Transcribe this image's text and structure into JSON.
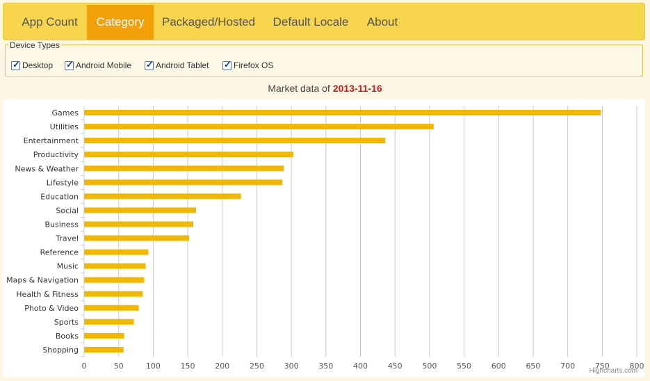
{
  "nav": {
    "tabs": [
      {
        "label": "App Count",
        "active": false
      },
      {
        "label": "Category",
        "active": true
      },
      {
        "label": "Packaged/Hosted",
        "active": false
      },
      {
        "label": "Default Locale",
        "active": false
      },
      {
        "label": "About",
        "active": false
      }
    ]
  },
  "device_types": {
    "legend": "Device Types",
    "options": [
      {
        "label": "Desktop",
        "checked": true
      },
      {
        "label": "Android Mobile",
        "checked": true
      },
      {
        "label": "Android Tablet",
        "checked": true
      },
      {
        "label": "Firefox OS",
        "checked": true
      }
    ]
  },
  "market": {
    "prefix": "Market data of",
    "date": "2013-11-16"
  },
  "credit": "Highcharts.com",
  "colors": {
    "accent": "#f2a007",
    "bar": "#f2b800",
    "date": "#c0201d",
    "navbar": "#f7d54c"
  },
  "chart_data": {
    "type": "bar",
    "orientation": "horizontal",
    "categories": [
      "Games",
      "Utilities",
      "Entertainment",
      "Productivity",
      "News & Weather",
      "Lifestyle",
      "Education",
      "Social",
      "Business",
      "Travel",
      "Reference",
      "Music",
      "Maps & Navigation",
      "Health & Fitness",
      "Photo & Video",
      "Sports",
      "Books",
      "Shopping"
    ],
    "values": [
      748,
      506,
      436,
      303,
      289,
      287,
      227,
      162,
      158,
      152,
      93,
      89,
      87,
      85,
      79,
      72,
      58,
      57
    ],
    "xlim": [
      0,
      800
    ],
    "ticks": [
      "0",
      "50",
      "100",
      "150",
      "200",
      "250",
      "300",
      "350",
      "400",
      "450",
      "500",
      "550",
      "600",
      "650",
      "700",
      "750",
      "800"
    ],
    "grid": true,
    "legend": false
  }
}
